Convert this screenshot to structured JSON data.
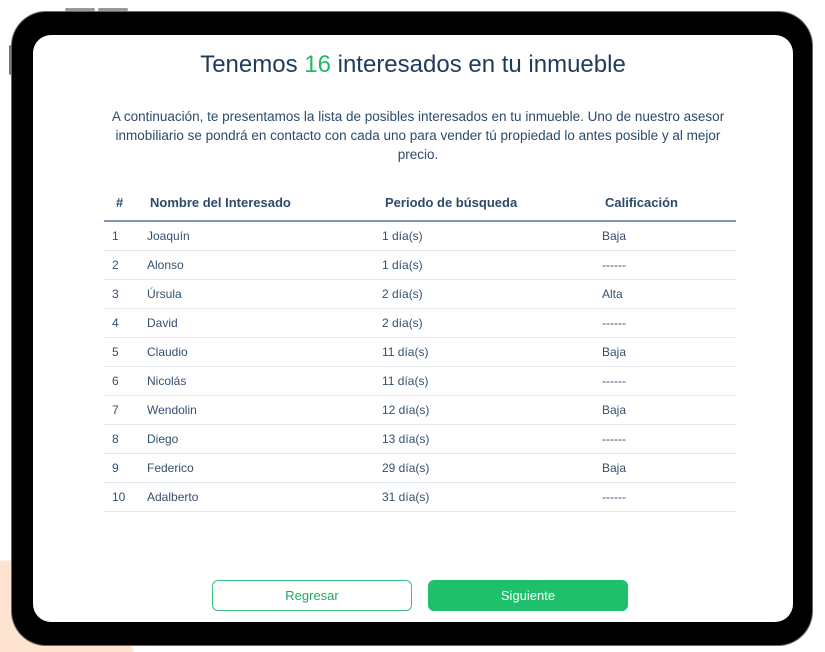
{
  "title": {
    "prefix": "Tenemos ",
    "count": "16",
    "suffix": " interesados en tu inmueble"
  },
  "description": "A continuación, te presentamos la lista de posibles interesados en tu inmueble. Uno de nuestro asesor inmobiliario se pondrá en contacto con cada uno para vender tú propiedad lo antes posible y al mejor precio.",
  "table": {
    "headers": [
      "#",
      "Nombre del Interesado",
      "Periodo de búsqueda",
      "Calificación"
    ],
    "rows": [
      [
        "1",
        "Joaquín",
        "1 día(s)",
        "Baja"
      ],
      [
        "2",
        "Alonso",
        "1 día(s)",
        "------"
      ],
      [
        "3",
        "Úrsula",
        "2 día(s)",
        "Alta"
      ],
      [
        "4",
        "David",
        "2 día(s)",
        "------"
      ],
      [
        "5",
        "Claudio",
        "11 día(s)",
        "Baja"
      ],
      [
        "6",
        "Nicolás",
        "11 día(s)",
        "------"
      ],
      [
        "7",
        "Wendolin",
        "12 día(s)",
        "Baja"
      ],
      [
        "8",
        "Diego",
        "13 día(s)",
        "------"
      ],
      [
        "9",
        "Federico",
        "29 día(s)",
        "Baja"
      ],
      [
        "10",
        "Adalberto",
        "31 día(s)",
        "------"
      ]
    ]
  },
  "buttons": {
    "back": "Regresar",
    "next": "Siguiente"
  },
  "colors": {
    "accent": "#1ec06b",
    "text": "#1f3b5c"
  }
}
